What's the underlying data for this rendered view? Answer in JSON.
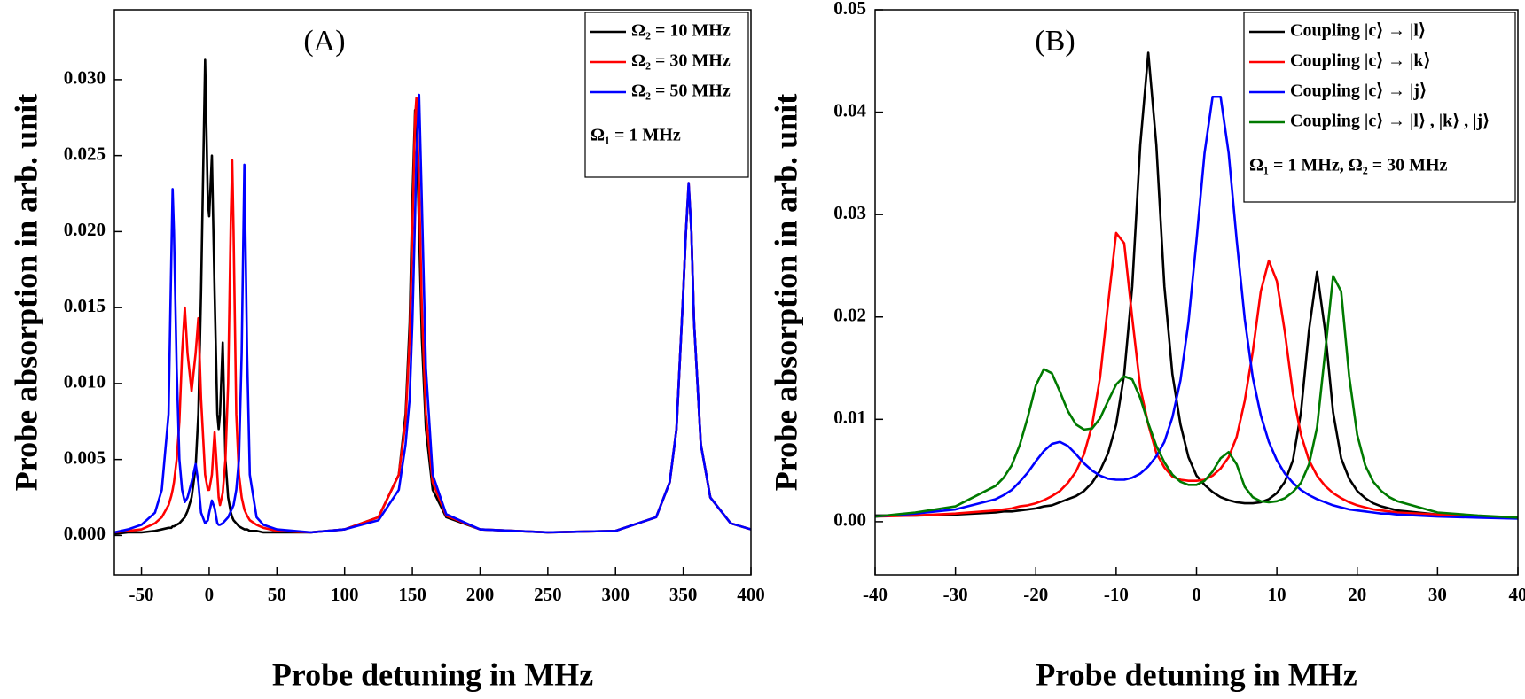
{
  "chart_data": [
    {
      "type": "line",
      "panel_label": "(A)",
      "xlabel": "Probe detuning in MHz",
      "ylabel": "Probe absorption in arb. unit",
      "legend": "upper right",
      "legend_note": "Ω₁ = 1 MHz",
      "xlim": [
        -70,
        400
      ],
      "ylim": [
        -0.0026,
        0.0346
      ],
      "xticks": [
        -50,
        0,
        50,
        100,
        150,
        200,
        250,
        300,
        350,
        400
      ],
      "yticks": [
        {
          "value": 0,
          "label": "0.000"
        },
        {
          "value": 0.005,
          "label": "0.005"
        },
        {
          "value": 0.01,
          "label": "0.010"
        },
        {
          "value": 0.015,
          "label": "0.015"
        },
        {
          "value": 0.02,
          "label": "0.020"
        },
        {
          "value": 0.025,
          "label": "0.025"
        },
        {
          "value": 0.03,
          "label": "0.030"
        }
      ],
      "x": [
        -70,
        -60,
        -50,
        -40,
        -35,
        -30,
        -28,
        -27,
        -26,
        -24,
        -22,
        -20,
        -18,
        -16,
        -13,
        -10,
        -8,
        -6,
        -3,
        -1,
        0,
        2,
        4,
        6,
        7,
        8,
        10,
        12,
        14,
        16,
        17,
        18,
        20,
        22,
        24,
        26,
        28,
        30,
        35,
        40,
        50,
        75,
        100,
        125,
        140,
        145,
        148,
        150,
        152,
        153,
        155,
        157,
        160,
        165,
        175,
        200,
        250,
        300,
        330,
        340,
        345,
        350,
        352,
        354,
        356,
        358,
        363,
        370,
        385,
        400
      ],
      "series": [
        {
          "name": "Ω₂ = 10 MHz",
          "color": "#000000",
          "values": [
            0.0001,
            0.0002,
            0.0002,
            0.0003,
            0.0004,
            0.0005,
            0.0005,
            0.0006,
            0.0006,
            0.0007,
            0.0008,
            0.001,
            0.0012,
            0.0016,
            0.0025,
            0.0045,
            0.008,
            0.016,
            0.0313,
            0.022,
            0.021,
            0.025,
            0.016,
            0.008,
            0.007,
            0.008,
            0.0127,
            0.005,
            0.0025,
            0.0015,
            0.0012,
            0.001,
            0.0008,
            0.0006,
            0.0005,
            0.0004,
            0.0004,
            0.0003,
            0.0003,
            0.0002,
            0.0002,
            0.0002,
            0.0004,
            0.0012,
            0.004,
            0.008,
            0.014,
            0.022,
            0.028,
            0.027,
            0.02,
            0.013,
            0.007,
            0.003,
            0.0012,
            0.0004,
            0.0002,
            0.0003,
            0.0012,
            0.0035,
            0.007,
            0.016,
            0.02,
            0.023,
            0.02,
            0.014,
            0.006,
            0.0025,
            0.0008,
            0.0004
          ]
        },
        {
          "name": "Ω₂ = 30 MHz",
          "color": "#ff0000",
          "values": [
            0.0002,
            0.0003,
            0.0004,
            0.0008,
            0.0012,
            0.002,
            0.0026,
            0.003,
            0.0035,
            0.005,
            0.0075,
            0.012,
            0.015,
            0.012,
            0.0095,
            0.012,
            0.0143,
            0.009,
            0.004,
            0.003,
            0.003,
            0.004,
            0.0068,
            0.004,
            0.0025,
            0.002,
            0.0028,
            0.005,
            0.01,
            0.021,
            0.0247,
            0.02,
            0.008,
            0.004,
            0.0025,
            0.0017,
            0.0013,
            0.001,
            0.0007,
            0.0005,
            0.0003,
            0.0002,
            0.0004,
            0.0012,
            0.004,
            0.0075,
            0.013,
            0.02,
            0.0275,
            0.0288,
            0.023,
            0.015,
            0.008,
            0.0035,
            0.0013,
            0.0004,
            0.0002,
            0.0003,
            0.0012,
            0.0035,
            0.007,
            0.016,
            0.02,
            0.0232,
            0.02,
            0.014,
            0.006,
            0.0025,
            0.0008,
            0.0004
          ]
        },
        {
          "name": "Ω₂ = 50 MHz",
          "color": "#0000ff",
          "values": [
            0.0002,
            0.0004,
            0.0007,
            0.0015,
            0.003,
            0.008,
            0.018,
            0.0228,
            0.02,
            0.011,
            0.005,
            0.003,
            0.0022,
            0.0025,
            0.0035,
            0.0047,
            0.0035,
            0.0015,
            0.0008,
            0.001,
            0.0015,
            0.0023,
            0.0018,
            0.0008,
            0.0007,
            0.0007,
            0.0008,
            0.001,
            0.0012,
            0.0016,
            0.0018,
            0.002,
            0.003,
            0.005,
            0.012,
            0.0244,
            0.012,
            0.004,
            0.0012,
            0.0007,
            0.0004,
            0.0002,
            0.0004,
            0.001,
            0.003,
            0.006,
            0.009,
            0.014,
            0.021,
            0.025,
            0.029,
            0.022,
            0.011,
            0.004,
            0.0014,
            0.0004,
            0.0002,
            0.0003,
            0.0012,
            0.0035,
            0.007,
            0.016,
            0.02,
            0.0232,
            0.02,
            0.014,
            0.006,
            0.0025,
            0.0008,
            0.0004
          ]
        }
      ]
    },
    {
      "type": "line",
      "panel_label": "(B)",
      "xlabel": "Probe detuning in MHz",
      "ylabel": "Probe absorption in arb. unit",
      "legend": "upper right",
      "legend_note": "Ω₁ = 1 MHz, Ω₂ = 30 MHz",
      "xlim": [
        -40,
        40
      ],
      "ylim": [
        -0.0052,
        0.05
      ],
      "xticks": [
        -40,
        -30,
        -20,
        -10,
        0,
        10,
        20,
        30,
        40
      ],
      "yticks": [
        {
          "value": 0,
          "label": "0.00"
        },
        {
          "value": 0.01,
          "label": "0.01"
        },
        {
          "value": 0.02,
          "label": "0.02"
        },
        {
          "value": 0.03,
          "label": "0.03"
        },
        {
          "value": 0.04,
          "label": "0.04"
        },
        {
          "value": 0.05,
          "label": "0.05"
        }
      ],
      "x": [
        -40,
        -35,
        -30,
        -25,
        -24,
        -23,
        -22,
        -21,
        -20,
        -19,
        -18,
        -17,
        -16,
        -15,
        -14,
        -13,
        -12,
        -11,
        -10,
        -9,
        -8,
        -7,
        -6,
        -5,
        -4,
        -3,
        -2,
        -1,
        0,
        1,
        2,
        3,
        4,
        5,
        6,
        7,
        8,
        9,
        10,
        11,
        12,
        13,
        14,
        15,
        16,
        17,
        18,
        19,
        20,
        21,
        22,
        23,
        24,
        25,
        30,
        35,
        40
      ],
      "series": [
        {
          "name": "Coupling |c⟩ → |l⟩",
          "color": "#000000",
          "values": [
            0.0006,
            0.0006,
            0.0007,
            0.0009,
            0.001,
            0.001,
            0.0011,
            0.0012,
            0.0013,
            0.0015,
            0.0016,
            0.0019,
            0.0022,
            0.0025,
            0.003,
            0.0038,
            0.005,
            0.0067,
            0.0095,
            0.0144,
            0.023,
            0.0368,
            0.0458,
            0.0368,
            0.023,
            0.0144,
            0.0095,
            0.0063,
            0.0045,
            0.0036,
            0.0029,
            0.0024,
            0.0021,
            0.0019,
            0.0018,
            0.0018,
            0.0019,
            0.0022,
            0.0028,
            0.0039,
            0.006,
            0.0107,
            0.0187,
            0.0244,
            0.0187,
            0.0107,
            0.0062,
            0.0042,
            0.003,
            0.0023,
            0.0018,
            0.0015,
            0.0013,
            0.0011,
            0.0007,
            0.0005,
            0.0004
          ]
        },
        {
          "name": "Coupling |c⟩ → |k⟩",
          "color": "#ff0000",
          "values": [
            0.0005,
            0.0006,
            0.0008,
            0.0011,
            0.0012,
            0.0013,
            0.0015,
            0.0016,
            0.0018,
            0.0021,
            0.0025,
            0.003,
            0.0038,
            0.0049,
            0.0066,
            0.0094,
            0.0141,
            0.0213,
            0.0282,
            0.0272,
            0.0199,
            0.0131,
            0.0095,
            0.0067,
            0.0053,
            0.0044,
            0.0041,
            0.004,
            0.004,
            0.0041,
            0.0045,
            0.0052,
            0.0063,
            0.0083,
            0.0118,
            0.0166,
            0.0225,
            0.0255,
            0.0235,
            0.0185,
            0.0125,
            0.0085,
            0.006,
            0.0045,
            0.0035,
            0.0028,
            0.0023,
            0.0019,
            0.0016,
            0.0014,
            0.0012,
            0.0011,
            0.001,
            0.0009,
            0.0007,
            0.0005,
            0.0004
          ]
        },
        {
          "name": "Coupling |c⟩ → |j⟩",
          "color": "#0000ff",
          "values": [
            0.0005,
            0.0008,
            0.0012,
            0.0022,
            0.0026,
            0.0031,
            0.0039,
            0.0048,
            0.0059,
            0.0069,
            0.0076,
            0.0078,
            0.0074,
            0.0066,
            0.0057,
            0.005,
            0.0045,
            0.0042,
            0.0041,
            0.0041,
            0.0043,
            0.0047,
            0.0054,
            0.0064,
            0.0078,
            0.0102,
            0.0138,
            0.0195,
            0.0275,
            0.036,
            0.0415,
            0.0415,
            0.036,
            0.0275,
            0.0198,
            0.0141,
            0.0104,
            0.0078,
            0.006,
            0.0047,
            0.0038,
            0.0031,
            0.0026,
            0.0022,
            0.0019,
            0.0016,
            0.0014,
            0.0012,
            0.0011,
            0.001,
            0.0009,
            0.0008,
            0.0008,
            0.0007,
            0.0005,
            0.0004,
            0.0003
          ]
        },
        {
          "name": "Coupling |c⟩ → |l⟩ , |k⟩ , |j⟩",
          "color": "#007a00",
          "values": [
            0.0005,
            0.0009,
            0.0015,
            0.0035,
            0.0043,
            0.0055,
            0.0075,
            0.0102,
            0.0133,
            0.0149,
            0.0145,
            0.0127,
            0.0108,
            0.0095,
            0.009,
            0.0091,
            0.0101,
            0.0118,
            0.0134,
            0.0142,
            0.0139,
            0.0121,
            0.0096,
            0.0074,
            0.0058,
            0.0046,
            0.0039,
            0.0036,
            0.0036,
            0.004,
            0.0049,
            0.0062,
            0.0068,
            0.0056,
            0.0034,
            0.0024,
            0.002,
            0.0019,
            0.002,
            0.0023,
            0.0029,
            0.0038,
            0.0056,
            0.0092,
            0.0165,
            0.024,
            0.0225,
            0.0142,
            0.0085,
            0.0055,
            0.0039,
            0.003,
            0.0024,
            0.002,
            0.0009,
            0.0006,
            0.0004
          ]
        }
      ]
    }
  ]
}
